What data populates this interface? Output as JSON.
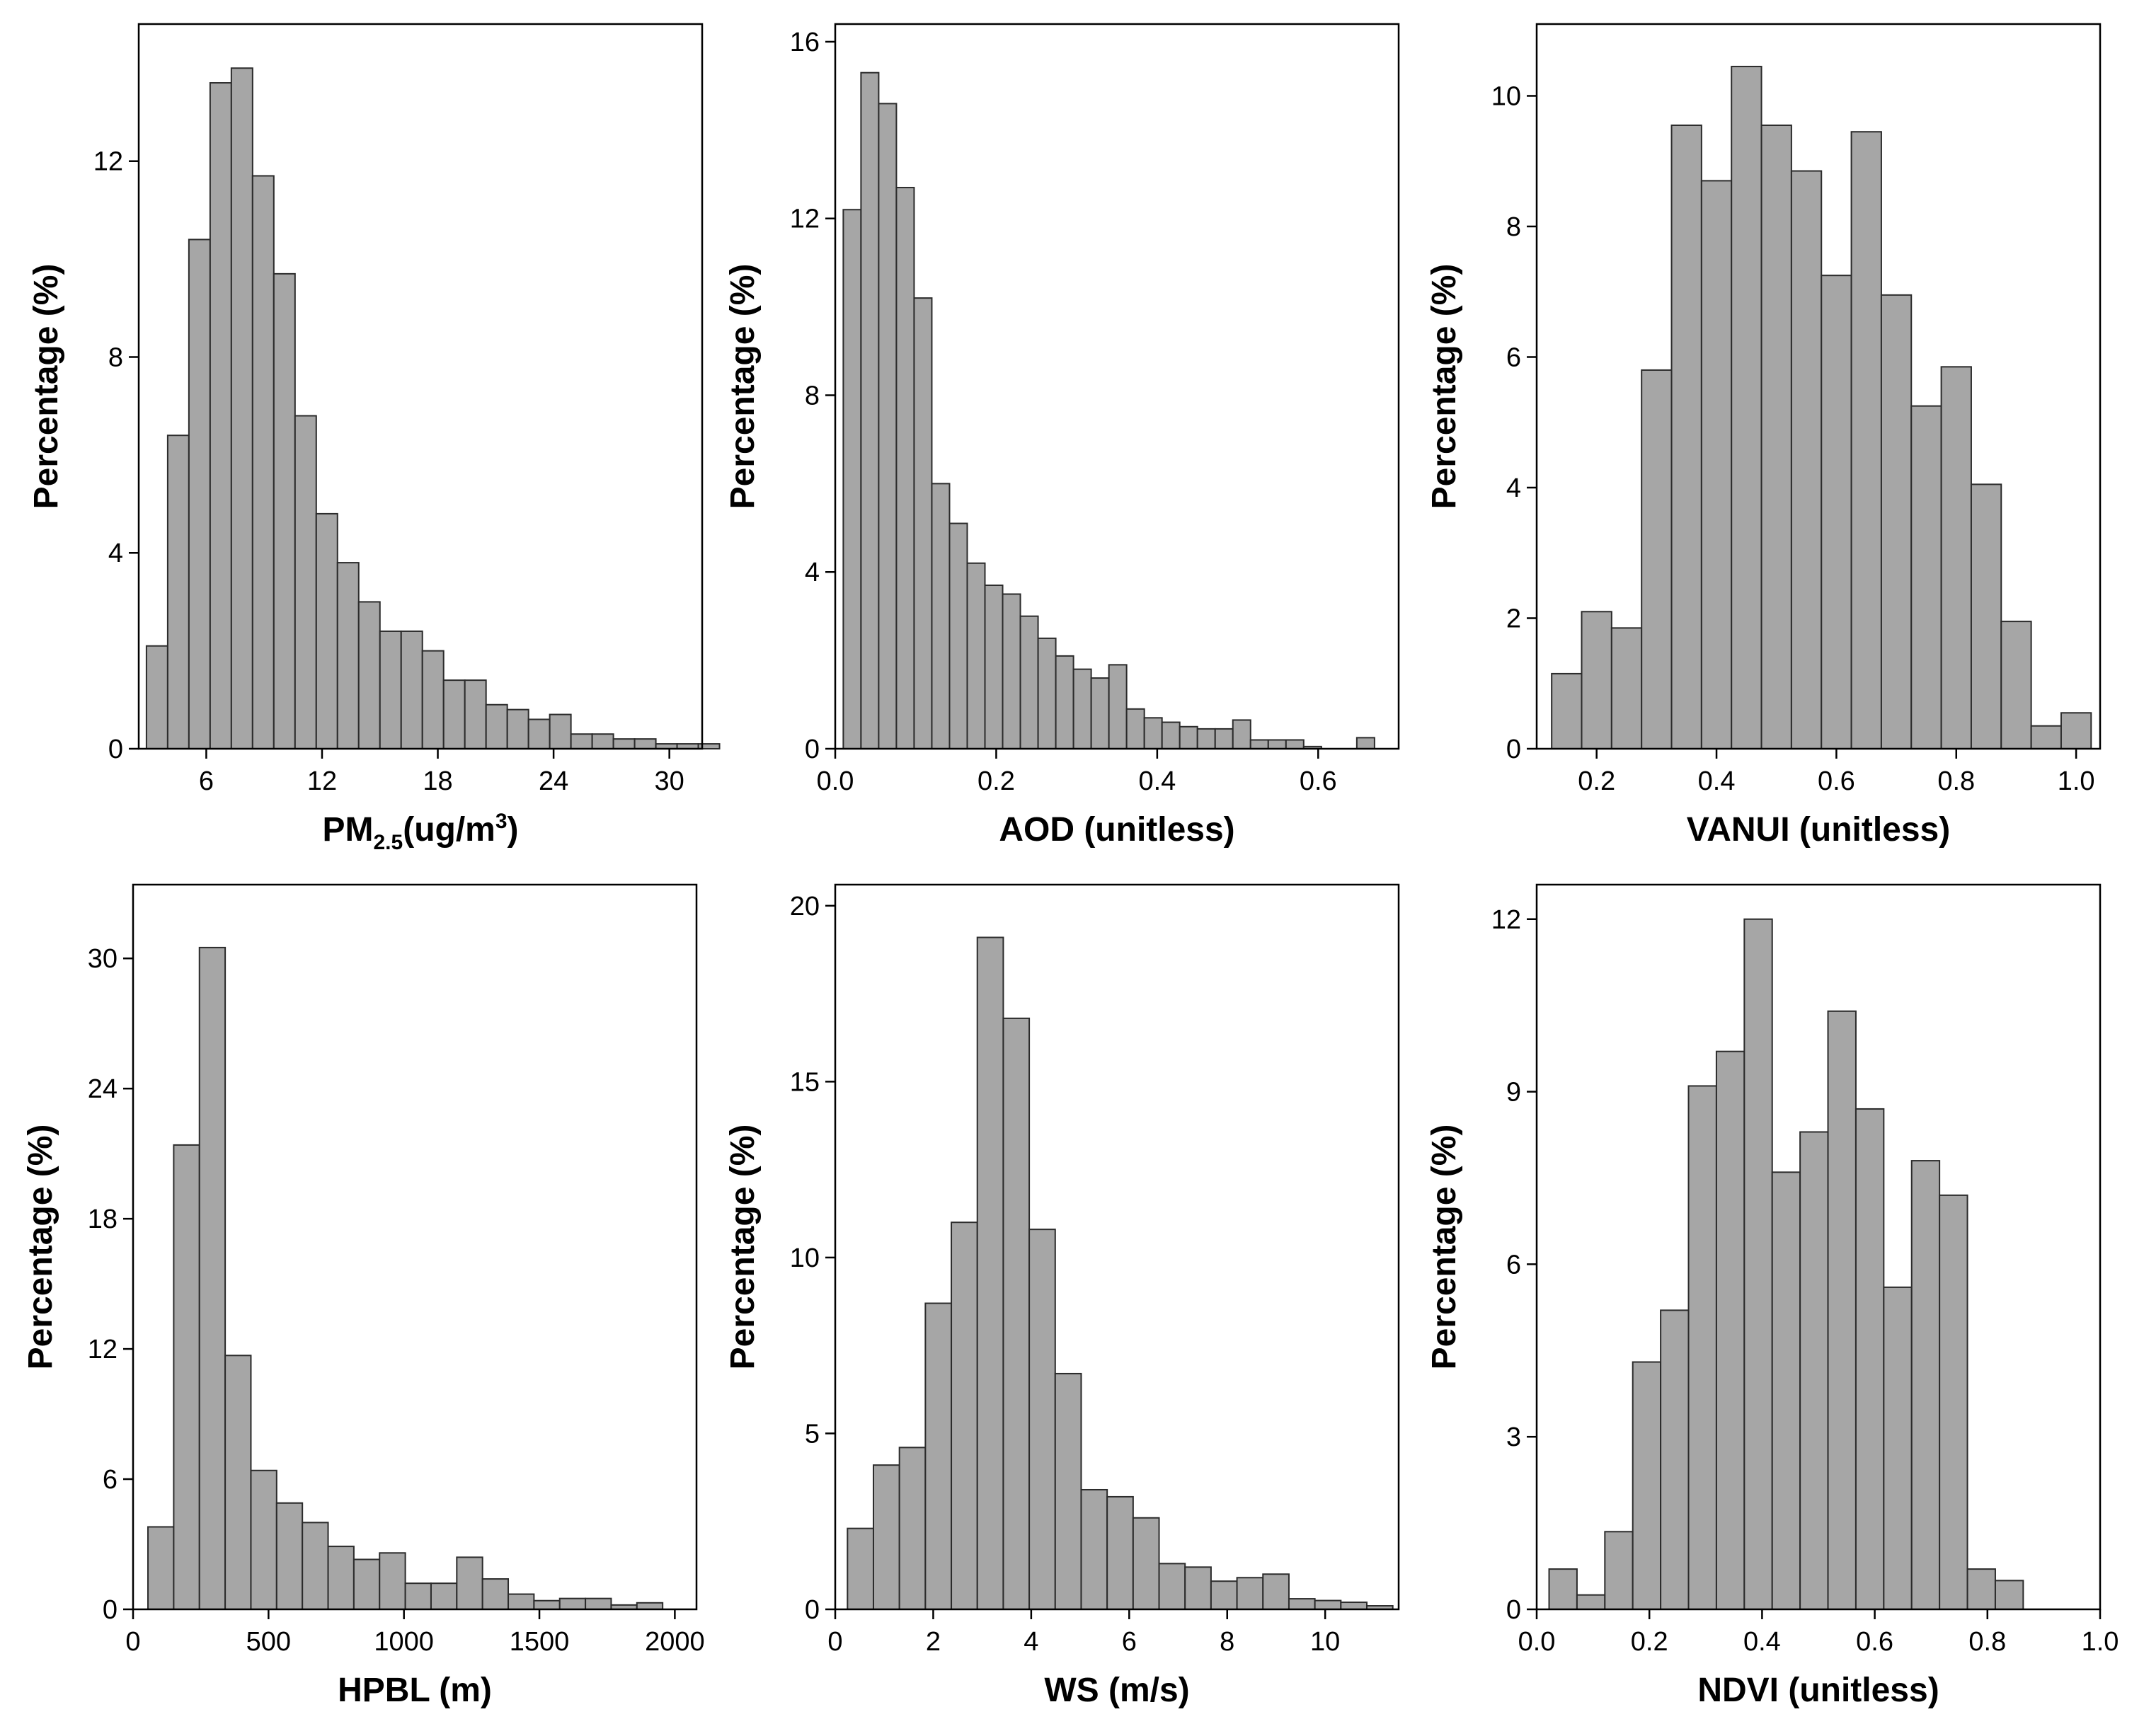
{
  "chart_data": [
    {
      "type": "bar",
      "xlabel": "PM",
      "xlabel_sub": "2.5",
      "xlabel_rest": "(ug/m",
      "xlabel_sup": "3",
      "xlabel_end": ")",
      "ylabel": "Percentage (%)",
      "xlim": [
        2.5,
        31.7
      ],
      "ylim": [
        0,
        14.8
      ],
      "xticks": [
        6,
        12,
        18,
        24,
        30
      ],
      "yticks": [
        0,
        4,
        8,
        12
      ],
      "bin_width": 1.1,
      "bin_start": 2.9,
      "values": [
        2.1,
        6.4,
        10.4,
        13.6,
        13.9,
        11.7,
        9.7,
        6.8,
        4.8,
        3.8,
        3.0,
        2.4,
        2.4,
        2.0,
        1.4,
        1.4,
        0.9,
        0.8,
        0.6,
        0.7,
        0.3,
        0.3,
        0.2,
        0.2,
        0.1,
        0.1,
        0.1
      ]
    },
    {
      "type": "bar",
      "xlabel": "AOD (unitless)",
      "ylabel": "Percentage (%)",
      "xlim": [
        0.0,
        0.7
      ],
      "ylim": [
        0,
        16.4
      ],
      "xticks": [
        0.0,
        0.2,
        0.4,
        0.6
      ],
      "xtick_labels": [
        "0.0",
        "0.2",
        "0.4",
        "0.6"
      ],
      "yticks": [
        0,
        4,
        8,
        12,
        16
      ],
      "bin_width": 0.022,
      "bin_start": 0.01,
      "values": [
        12.2,
        15.3,
        14.6,
        12.7,
        10.2,
        6.0,
        5.1,
        4.2,
        3.7,
        3.5,
        3.0,
        2.5,
        2.1,
        1.8,
        1.6,
        1.9,
        0.9,
        0.7,
        0.6,
        0.5,
        0.45,
        0.45,
        0.65,
        0.2,
        0.2,
        0.2,
        0.05,
        0.0,
        0.0,
        0.25
      ]
    },
    {
      "type": "bar",
      "xlabel": "VANUI (unitless)",
      "ylabel": "Percentage (%)",
      "xlim": [
        0.1,
        1.04
      ],
      "ylim": [
        0,
        11.1
      ],
      "xticks": [
        0.2,
        0.4,
        0.6,
        0.8,
        1.0
      ],
      "xtick_labels": [
        "0.2",
        "0.4",
        "0.6",
        "0.8",
        "1.0"
      ],
      "yticks": [
        0,
        2,
        4,
        6,
        8,
        10
      ],
      "bin_width": 0.05,
      "bin_start": 0.125,
      "values": [
        1.15,
        2.1,
        1.85,
        5.8,
        9.55,
        8.7,
        10.45,
        9.55,
        8.85,
        7.25,
        9.45,
        6.95,
        5.25,
        5.85,
        4.05,
        1.95,
        0.35,
        0.55
      ]
    },
    {
      "type": "bar",
      "xlabel": "HPBL (m)",
      "ylabel": "Percentage (%)",
      "xlim": [
        0,
        2080
      ],
      "ylim": [
        0,
        33.4
      ],
      "xticks": [
        0,
        500,
        1000,
        1500,
        2000
      ],
      "yticks": [
        0,
        6,
        12,
        18,
        24,
        30
      ],
      "bin_width": 95,
      "bin_start": 55,
      "values": [
        3.8,
        21.4,
        30.5,
        11.7,
        6.4,
        4.9,
        4.0,
        2.9,
        2.3,
        2.6,
        1.2,
        1.2,
        2.4,
        1.4,
        0.7,
        0.4,
        0.5,
        0.5,
        0.2,
        0.3
      ]
    },
    {
      "type": "bar",
      "xlabel": "WS (m/s)",
      "ylabel": "Percentage (%)",
      "xlim": [
        0,
        11.5
      ],
      "ylim": [
        0,
        20.6
      ],
      "xticks": [
        0,
        2,
        4,
        6,
        8,
        10
      ],
      "yticks": [
        0,
        5,
        10,
        15,
        20
      ],
      "bin_width": 0.53,
      "bin_start": 0.25,
      "values": [
        2.3,
        4.1,
        4.6,
        8.7,
        11.0,
        19.1,
        16.8,
        10.8,
        6.7,
        3.4,
        3.2,
        2.6,
        1.3,
        1.2,
        0.8,
        0.9,
        1.0,
        0.3,
        0.25,
        0.2,
        0.1
      ]
    },
    {
      "type": "bar",
      "xlabel": "NDVI (unitless)",
      "ylabel": "Percentage (%)",
      "xlim": [
        0.0,
        1.0
      ],
      "ylim": [
        0,
        12.6
      ],
      "xticks": [
        0.0,
        0.2,
        0.4,
        0.6,
        0.8,
        1.0
      ],
      "xtick_labels": [
        "0.0",
        "0.2",
        "0.4",
        "0.6",
        "0.8",
        "1.0"
      ],
      "yticks": [
        0,
        3,
        6,
        9,
        12
      ],
      "bin_width": 0.0495,
      "bin_start": 0.022,
      "values": [
        0.7,
        0.25,
        1.35,
        4.3,
        5.2,
        9.1,
        9.7,
        12.0,
        7.6,
        8.3,
        10.4,
        8.7,
        5.6,
        7.8,
        7.2,
        0.7,
        0.5
      ]
    }
  ]
}
